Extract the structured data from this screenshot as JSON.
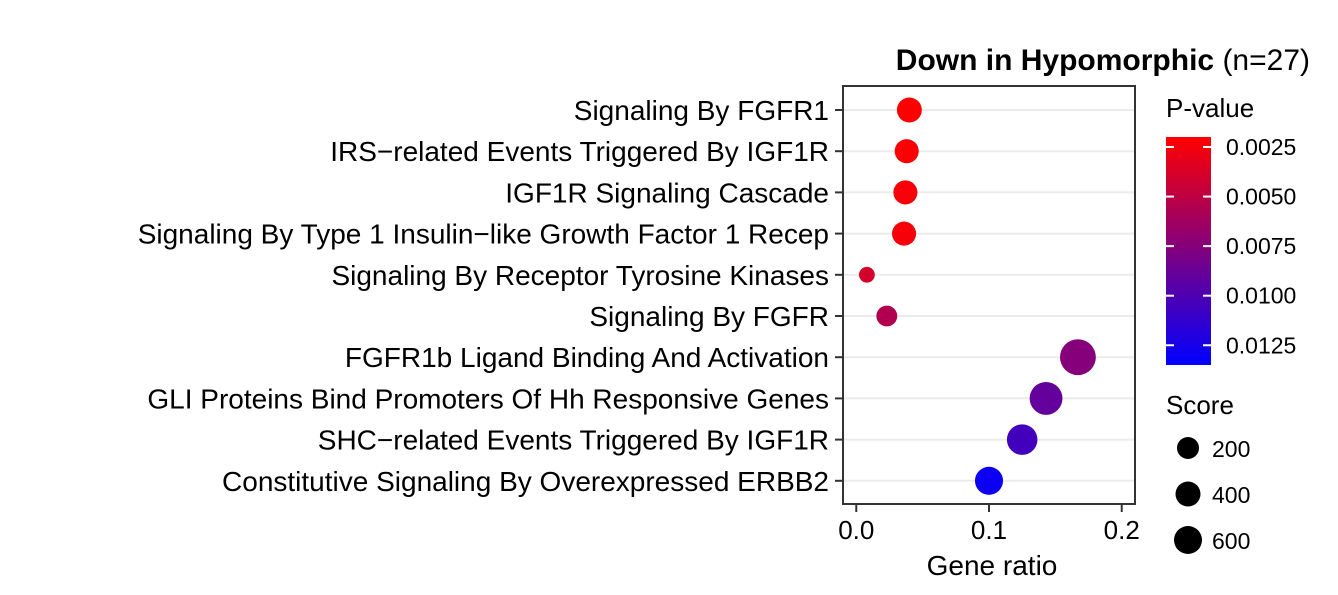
{
  "chart_data": {
    "type": "scatter",
    "title_bold": "Down in Hypomorphic",
    "title_rest": " (n=27)",
    "xlabel": "Gene ratio",
    "xlim": [
      -0.01,
      0.21
    ],
    "xticks": [
      {
        "value": 0.0,
        "label": "0.0"
      },
      {
        "value": 0.1,
        "label": "0.1"
      },
      {
        "value": 0.2,
        "label": "0.2"
      }
    ],
    "grid": true,
    "points": [
      {
        "term": "Signaling By FGFR1",
        "x": 0.04,
        "pvalue": 0.0025,
        "score": 300
      },
      {
        "term": "IRS−related Events Triggered By IGF1R",
        "x": 0.038,
        "pvalue": 0.0027,
        "score": 280
      },
      {
        "term": "IGF1R Signaling Cascade",
        "x": 0.037,
        "pvalue": 0.0028,
        "score": 280
      },
      {
        "term": "Signaling By Type 1 Insulin−like Growth Factor 1 Recep",
        "x": 0.036,
        "pvalue": 0.0029,
        "score": 280
      },
      {
        "term": "Signaling By Receptor Tyrosine Kinases",
        "x": 0.008,
        "pvalue": 0.0045,
        "score": 120
      },
      {
        "term": "Signaling By FGFR",
        "x": 0.023,
        "pvalue": 0.006,
        "score": 210
      },
      {
        "term": "FGFR1b Ligand Binding And Activation",
        "x": 0.167,
        "pvalue": 0.008,
        "score": 620
      },
      {
        "term": "GLI Proteins Bind Promoters Of Hh Responsive Genes",
        "x": 0.143,
        "pvalue": 0.0095,
        "score": 520
      },
      {
        "term": "SHC−related Events Triggered By IGF1R",
        "x": 0.125,
        "pvalue": 0.011,
        "score": 450
      },
      {
        "term": "Constitutive Signaling By Overexpressed ERBB2",
        "x": 0.1,
        "pvalue": 0.0135,
        "score": 380
      }
    ],
    "color_legend": {
      "title": "P-value",
      "min": 0.0025,
      "max": 0.014,
      "low_color": "#ff0000",
      "high_color": "#0000ff",
      "ticks": [
        {
          "value": 0.0025,
          "label": "0.0025"
        },
        {
          "value": 0.005,
          "label": "0.0050"
        },
        {
          "value": 0.0075,
          "label": "0.0075"
        },
        {
          "value": 0.01,
          "label": "0.0100"
        },
        {
          "value": 0.0125,
          "label": "0.0125"
        }
      ]
    },
    "size_legend": {
      "title": "Score",
      "entries": [
        {
          "value": 200,
          "label": "200"
        },
        {
          "value": 400,
          "label": "400"
        },
        {
          "value": 600,
          "label": "600"
        }
      ]
    }
  }
}
